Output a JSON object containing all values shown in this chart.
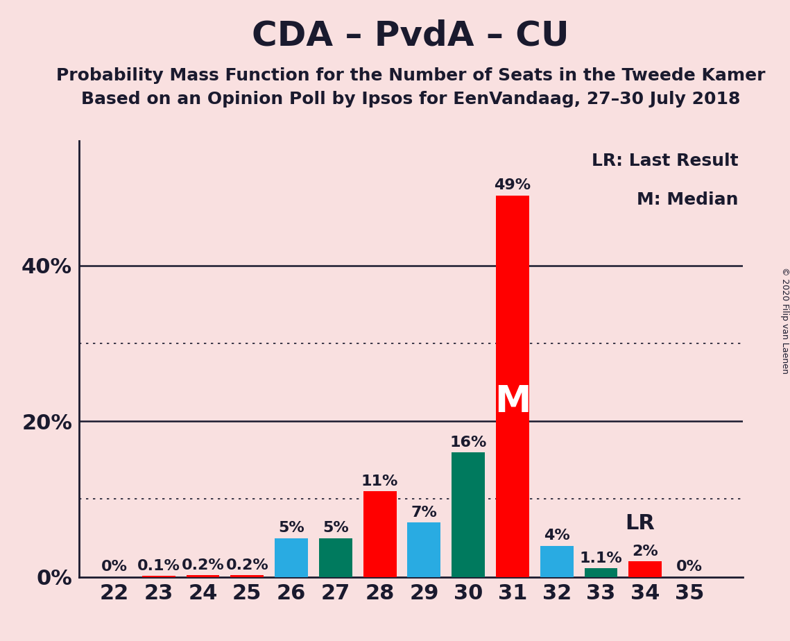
{
  "title": "CDA – PvdA – CU",
  "subtitle1": "Probability Mass Function for the Number of Seats in the Tweede Kamer",
  "subtitle2": "Based on an Opinion Poll by Ipsos for EenVandaag, 27–30 July 2018",
  "copyright": "© 2020 Filip van Laenen",
  "legend_lr": "LR: Last Result",
  "legend_m": "M: Median",
  "seats": [
    22,
    23,
    24,
    25,
    26,
    27,
    28,
    29,
    30,
    31,
    32,
    33,
    34,
    35
  ],
  "values": [
    0.0,
    0.1,
    0.2,
    0.2,
    5.0,
    5.0,
    11.0,
    7.0,
    16.0,
    49.0,
    4.0,
    1.1,
    2.0,
    0.0
  ],
  "labels": [
    "0%",
    "0.1%",
    "0.2%",
    "0.2%",
    "5%",
    "5%",
    "11%",
    "7%",
    "16%",
    "49%",
    "4%",
    "1.1%",
    "2%",
    "0%"
  ],
  "colors": [
    "#ff0000",
    "#ff0000",
    "#ff0000",
    "#ff0000",
    "#29abe2",
    "#007a5e",
    "#ff0000",
    "#29abe2",
    "#007a5e",
    "#ff0000",
    "#29abe2",
    "#007a5e",
    "#ff0000",
    "#ff0000"
  ],
  "median_seat": 31,
  "lr_seat": 33,
  "background_color": "#f9e0e0",
  "solid_gridlines": [
    20,
    40
  ],
  "dotted_gridlines": [
    10,
    30
  ],
  "ylim": [
    0,
    56
  ],
  "title_fontsize": 36,
  "subtitle_fontsize": 18,
  "axis_label_fontsize": 22,
  "bar_label_fontsize": 16,
  "bar_width": 0.75,
  "text_color": "#1a1a2e",
  "m_fontsize": 38,
  "lr_fontsize": 22,
  "legend_fontsize": 18
}
